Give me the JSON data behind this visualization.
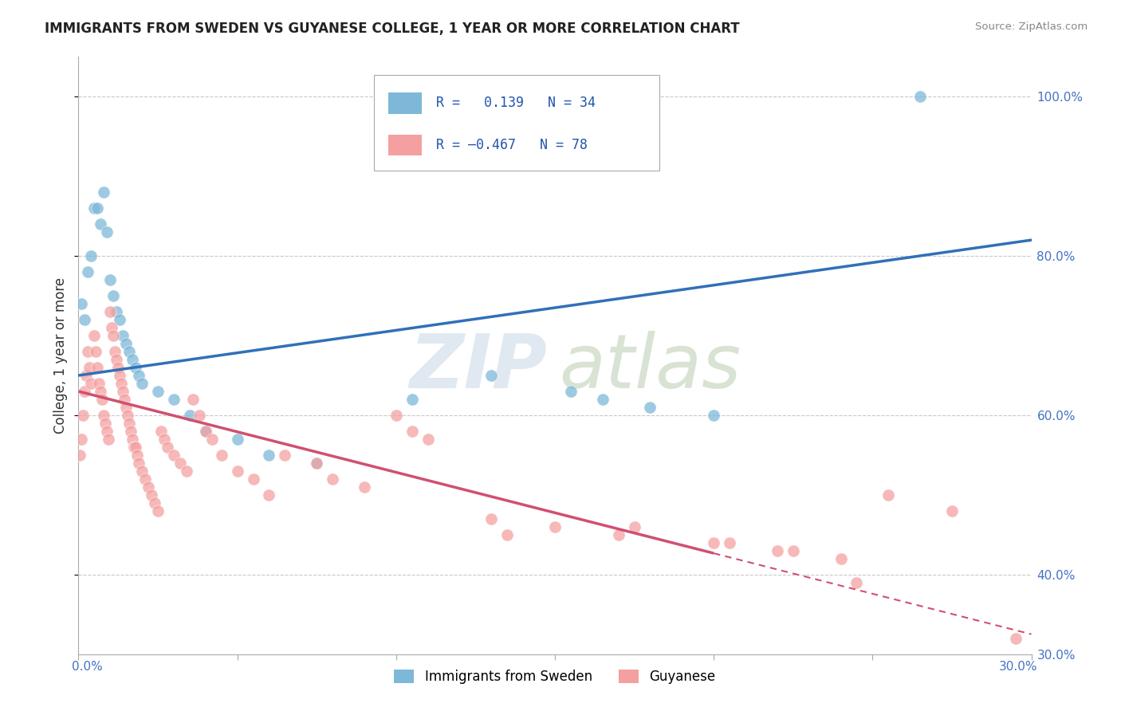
{
  "title": "IMMIGRANTS FROM SWEDEN VS GUYANESE COLLEGE, 1 YEAR OR MORE CORRELATION CHART",
  "source": "Source: ZipAtlas.com",
  "ylabel": "College, 1 year or more",
  "xlim": [
    0.0,
    30.0
  ],
  "ylim": [
    30.0,
    105.0
  ],
  "legend_blue_R": "0.139",
  "legend_blue_N": "34",
  "legend_pink_R": "-0.467",
  "legend_pink_N": "78",
  "blue_color": "#7eb8d9",
  "pink_color": "#f4a0a0",
  "trendline_blue": "#3070b8",
  "trendline_pink": "#d05070",
  "blue_scatter_x": [
    0.1,
    0.2,
    0.3,
    0.4,
    0.5,
    0.6,
    0.7,
    0.8,
    0.9,
    1.0,
    1.1,
    1.2,
    1.3,
    1.4,
    1.5,
    1.6,
    1.7,
    1.8,
    1.9,
    2.0,
    2.5,
    3.0,
    3.5,
    4.0,
    5.0,
    6.0,
    7.5,
    10.5,
    13.0,
    15.5,
    16.5,
    18.0,
    20.0,
    26.5
  ],
  "blue_scatter_y": [
    74,
    72,
    78,
    80,
    86,
    86,
    84,
    88,
    83,
    77,
    75,
    73,
    72,
    70,
    69,
    68,
    67,
    66,
    65,
    64,
    63,
    62,
    60,
    58,
    57,
    55,
    54,
    62,
    65,
    63,
    62,
    61,
    60,
    100
  ],
  "pink_scatter_x": [
    0.05,
    0.1,
    0.15,
    0.2,
    0.25,
    0.3,
    0.35,
    0.4,
    0.5,
    0.55,
    0.6,
    0.65,
    0.7,
    0.75,
    0.8,
    0.85,
    0.9,
    0.95,
    1.0,
    1.05,
    1.1,
    1.15,
    1.2,
    1.25,
    1.3,
    1.35,
    1.4,
    1.45,
    1.5,
    1.55,
    1.6,
    1.65,
    1.7,
    1.75,
    1.8,
    1.85,
    1.9,
    2.0,
    2.1,
    2.2,
    2.3,
    2.4,
    2.5,
    2.6,
    2.7,
    2.8,
    3.0,
    3.2,
    3.4,
    3.6,
    3.8,
    4.0,
    4.2,
    4.5,
    5.0,
    5.5,
    6.0,
    6.5,
    7.5,
    8.0,
    9.0,
    10.0,
    11.0,
    13.0,
    15.0,
    17.0,
    20.0,
    22.0,
    24.0,
    25.5,
    27.5,
    29.5,
    10.5,
    13.5,
    17.5,
    20.5,
    22.5,
    24.5
  ],
  "pink_scatter_y": [
    55,
    57,
    60,
    63,
    65,
    68,
    66,
    64,
    70,
    68,
    66,
    64,
    63,
    62,
    60,
    59,
    58,
    57,
    73,
    71,
    70,
    68,
    67,
    66,
    65,
    64,
    63,
    62,
    61,
    60,
    59,
    58,
    57,
    56,
    56,
    55,
    54,
    53,
    52,
    51,
    50,
    49,
    48,
    58,
    57,
    56,
    55,
    54,
    53,
    62,
    60,
    58,
    57,
    55,
    53,
    52,
    50,
    55,
    54,
    52,
    51,
    60,
    57,
    47,
    46,
    45,
    44,
    43,
    42,
    50,
    48,
    32,
    58,
    45,
    46,
    44,
    43,
    39
  ]
}
